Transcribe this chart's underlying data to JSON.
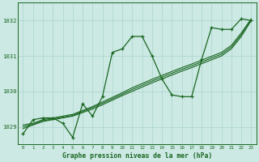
{
  "title": "Graphe pression niveau de la mer (hPa)",
  "bg_color": "#cce9e4",
  "line_color": "#1a6620",
  "grid_color": "#aad4cc",
  "x_ticks": [
    0,
    1,
    2,
    3,
    4,
    5,
    6,
    7,
    8,
    9,
    10,
    11,
    12,
    13,
    14,
    15,
    16,
    17,
    18,
    19,
    20,
    21,
    22,
    23
  ],
  "y_ticks": [
    1029,
    1030,
    1031,
    1032
  ],
  "ylim": [
    1028.5,
    1032.5
  ],
  "xlim": [
    -0.5,
    23.5
  ],
  "y_main": [
    1028.8,
    1029.2,
    1029.25,
    1029.25,
    1029.1,
    1028.7,
    1029.65,
    1029.3,
    1029.85,
    1031.1,
    1031.2,
    1031.55,
    1031.55,
    1031.0,
    1030.35,
    1029.9,
    1029.85,
    1029.85,
    1030.9,
    1031.8,
    1031.75,
    1031.75,
    1032.05,
    1032.0
  ],
  "y_trend1": [
    1028.95,
    1029.05,
    1029.15,
    1029.2,
    1029.25,
    1029.3,
    1029.4,
    1029.5,
    1029.62,
    1029.75,
    1029.88,
    1030.0,
    1030.12,
    1030.24,
    1030.35,
    1030.46,
    1030.57,
    1030.67,
    1030.78,
    1030.89,
    1031.0,
    1031.2,
    1031.55,
    1032.0
  ],
  "y_trend2": [
    1029.0,
    1029.07,
    1029.17,
    1029.22,
    1029.27,
    1029.32,
    1029.43,
    1029.54,
    1029.66,
    1029.79,
    1029.92,
    1030.05,
    1030.17,
    1030.29,
    1030.4,
    1030.51,
    1030.62,
    1030.72,
    1030.83,
    1030.94,
    1031.05,
    1031.25,
    1031.6,
    1032.02
  ],
  "y_trend3": [
    1029.05,
    1029.1,
    1029.2,
    1029.25,
    1029.3,
    1029.35,
    1029.46,
    1029.57,
    1029.7,
    1029.83,
    1029.96,
    1030.1,
    1030.22,
    1030.34,
    1030.45,
    1030.56,
    1030.67,
    1030.77,
    1030.88,
    1030.99,
    1031.1,
    1031.3,
    1031.65,
    1032.05
  ]
}
